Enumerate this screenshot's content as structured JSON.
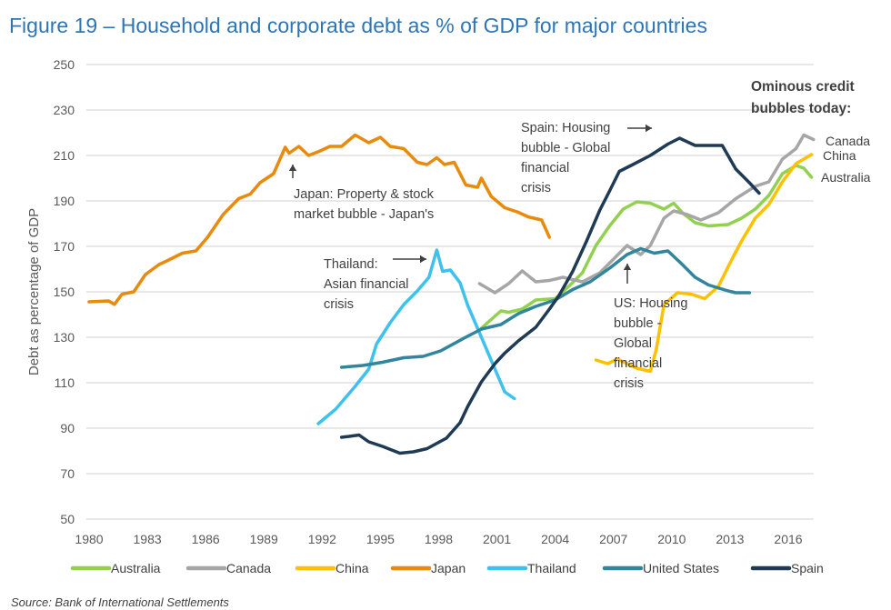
{
  "chart_data": {
    "type": "line",
    "title": "Figure 19 – Household and corporate debt as % of GDP for major countries",
    "xlabel": "",
    "ylabel": "Debt as percentage of GDP",
    "xlim": [
      1980,
      2017.3
    ],
    "ylim": [
      50,
      250
    ],
    "yticks": [
      50,
      70,
      90,
      110,
      130,
      150,
      170,
      190,
      210,
      230,
      250
    ],
    "xticks": [
      1980,
      1983,
      1986,
      1989,
      1992,
      1995,
      1998,
      2001,
      2004,
      2007,
      2010,
      2013,
      2016
    ],
    "grid": "horizontal",
    "legend_position": "bottom",
    "series": [
      {
        "name": "Australia",
        "color": "#92d050",
        "points": [
          [
            2000.2,
            134
          ],
          [
            2001.2,
            141.6
          ],
          [
            2001.6,
            141
          ],
          [
            2002.3,
            142.4
          ],
          [
            2003,
            146.4
          ],
          [
            2004,
            147
          ],
          [
            2004.7,
            152.4
          ],
          [
            2005.4,
            158.4
          ],
          [
            2006.1,
            170.4
          ],
          [
            2006.8,
            179
          ],
          [
            2007.5,
            186.4
          ],
          [
            2008.2,
            189.6
          ],
          [
            2008.9,
            189
          ],
          [
            2009.6,
            186.4
          ],
          [
            2010.1,
            189
          ],
          [
            2010.6,
            184.4
          ],
          [
            2011.2,
            180.4
          ],
          [
            2011.9,
            179
          ],
          [
            2012.9,
            179.6
          ],
          [
            2013.6,
            182.4
          ],
          [
            2014.3,
            186.4
          ],
          [
            2015,
            192.4
          ],
          [
            2015.7,
            202
          ],
          [
            2016.4,
            205.6
          ],
          [
            2016.8,
            204.4
          ],
          [
            2017.2,
            200.4
          ]
        ]
      },
      {
        "name": "Canada",
        "color": "#a6a6a6",
        "points": [
          [
            2000.1,
            153.6
          ],
          [
            2000.9,
            149.6
          ],
          [
            2001.6,
            153.6
          ],
          [
            2002.3,
            159.2
          ],
          [
            2003,
            154.4
          ],
          [
            2003.7,
            155
          ],
          [
            2004.4,
            156.4
          ],
          [
            2005.4,
            154.4
          ],
          [
            2006.3,
            158.4
          ],
          [
            2007,
            164.4
          ],
          [
            2007.7,
            170.4
          ],
          [
            2008.4,
            166.4
          ],
          [
            2008.9,
            170.4
          ],
          [
            2009.6,
            182.4
          ],
          [
            2010.1,
            185.6
          ],
          [
            2010.8,
            184
          ],
          [
            2011.5,
            181.6
          ],
          [
            2012.4,
            184.8
          ],
          [
            2013.3,
            191
          ],
          [
            2014.3,
            196.4
          ],
          [
            2015,
            198.4
          ],
          [
            2015.7,
            208.4
          ],
          [
            2016.4,
            213
          ],
          [
            2016.8,
            219
          ],
          [
            2017.3,
            217
          ]
        ]
      },
      {
        "name": "China",
        "color": "#ffc000",
        "points": [
          [
            2006.1,
            120
          ],
          [
            2006.7,
            118.4
          ],
          [
            2007.2,
            120.4
          ],
          [
            2008.2,
            116.4
          ],
          [
            2008.9,
            115
          ],
          [
            2009.2,
            124.4
          ],
          [
            2009.6,
            144.4
          ],
          [
            2010.3,
            149.6
          ],
          [
            2011,
            149
          ],
          [
            2011.7,
            147
          ],
          [
            2012.4,
            152.4
          ],
          [
            2013.1,
            164.4
          ],
          [
            2013.6,
            172.4
          ],
          [
            2014.3,
            182.4
          ],
          [
            2015,
            188.4
          ],
          [
            2015.7,
            198.4
          ],
          [
            2016.4,
            206.4
          ],
          [
            2017.2,
            210.4
          ]
        ]
      },
      {
        "name": "Japan",
        "color": "#e88a0c",
        "points": [
          [
            1980,
            145.6
          ],
          [
            1981,
            146
          ],
          [
            1981.3,
            144.5
          ],
          [
            1981.7,
            149
          ],
          [
            1982.3,
            150
          ],
          [
            1982.9,
            157.6
          ],
          [
            1983.6,
            162
          ],
          [
            1984.1,
            164
          ],
          [
            1984.8,
            167
          ],
          [
            1985.5,
            168
          ],
          [
            1986.1,
            174
          ],
          [
            1986.9,
            184
          ],
          [
            1987.7,
            191
          ],
          [
            1988.3,
            193
          ],
          [
            1988.8,
            198
          ],
          [
            1989.5,
            202
          ],
          [
            1990.1,
            213.6
          ],
          [
            1990.3,
            211
          ],
          [
            1990.8,
            214
          ],
          [
            1991.3,
            210
          ],
          [
            1991.9,
            212
          ],
          [
            1992.4,
            214
          ],
          [
            1993,
            214
          ],
          [
            1993.7,
            219
          ],
          [
            1994.4,
            215.6
          ],
          [
            1995,
            218
          ],
          [
            1995.5,
            214
          ],
          [
            1996.2,
            213
          ],
          [
            1996.9,
            207
          ],
          [
            1997.4,
            206
          ],
          [
            1997.9,
            209
          ],
          [
            1998.3,
            206
          ],
          [
            1998.8,
            207
          ],
          [
            1999.4,
            197
          ],
          [
            2000,
            196
          ],
          [
            2000.2,
            200
          ],
          [
            2000.7,
            192
          ],
          [
            2001.4,
            187
          ],
          [
            2002.1,
            185
          ],
          [
            2002.6,
            183
          ],
          [
            2003.3,
            181.6
          ],
          [
            2003.7,
            174
          ]
        ]
      },
      {
        "name": "Thailand",
        "color": "#3ec1ef",
        "points": [
          [
            1991.8,
            92
          ],
          [
            1992.7,
            98.4
          ],
          [
            1993.7,
            108.4
          ],
          [
            1994.4,
            116
          ],
          [
            1994.8,
            127
          ],
          [
            1995.5,
            136.4
          ],
          [
            1996.2,
            144.4
          ],
          [
            1996.9,
            150.4
          ],
          [
            1997.5,
            156.4
          ],
          [
            1997.9,
            168.4
          ],
          [
            1998.2,
            159
          ],
          [
            1998.6,
            159.6
          ],
          [
            1999.1,
            154
          ],
          [
            1999.5,
            144
          ],
          [
            2000,
            134
          ],
          [
            2000.5,
            124
          ],
          [
            2000.9,
            116
          ],
          [
            2001.4,
            106
          ],
          [
            2001.9,
            103
          ]
        ]
      },
      {
        "name": "United States",
        "color": "#31859c",
        "points": [
          [
            1993,
            116.8
          ],
          [
            1994.1,
            117.6
          ],
          [
            1995.1,
            119
          ],
          [
            1996.2,
            121
          ],
          [
            1997.2,
            121.6
          ],
          [
            1998.1,
            124
          ],
          [
            1999.3,
            129.6
          ],
          [
            2000.2,
            133.6
          ],
          [
            2001.2,
            135.6
          ],
          [
            2002.1,
            140.4
          ],
          [
            2003,
            143.6
          ],
          [
            2004,
            146.4
          ],
          [
            2004.9,
            151
          ],
          [
            2005.8,
            154.4
          ],
          [
            2006.8,
            160.4
          ],
          [
            2007.7,
            166.4
          ],
          [
            2008.4,
            169
          ],
          [
            2009.1,
            167
          ],
          [
            2009.8,
            168
          ],
          [
            2010.5,
            162.4
          ],
          [
            2011.2,
            156.4
          ],
          [
            2011.9,
            153
          ],
          [
            2012.9,
            150.4
          ],
          [
            2013.3,
            149.6
          ],
          [
            2014,
            149.6
          ]
        ]
      },
      {
        "name": "Spain",
        "color": "#1f3a54",
        "points": [
          [
            1993,
            86
          ],
          [
            1993.4,
            86.4
          ],
          [
            1993.9,
            87
          ],
          [
            1994.4,
            84
          ],
          [
            1995.1,
            82
          ],
          [
            1996,
            79
          ],
          [
            1996.7,
            79.6
          ],
          [
            1997.4,
            81
          ],
          [
            1998.4,
            85.6
          ],
          [
            1999.1,
            92.4
          ],
          [
            1999.5,
            99.6
          ],
          [
            2000.2,
            110.4
          ],
          [
            2000.9,
            118.4
          ],
          [
            2001.4,
            123
          ],
          [
            2002.1,
            128.4
          ],
          [
            2003,
            134.4
          ],
          [
            2003.7,
            142.4
          ],
          [
            2004.2,
            148.4
          ],
          [
            2004.9,
            159
          ],
          [
            2005.6,
            172
          ],
          [
            2006.3,
            186
          ],
          [
            2006.8,
            194.4
          ],
          [
            2007.3,
            203
          ],
          [
            2008,
            206
          ],
          [
            2008.9,
            210
          ],
          [
            2009.8,
            215
          ],
          [
            2010.4,
            217.6
          ],
          [
            2011.2,
            214.4
          ],
          [
            2011.9,
            214.4
          ],
          [
            2012.6,
            214.4
          ],
          [
            2013.3,
            204
          ],
          [
            2014,
            198
          ],
          [
            2014.5,
            193.4
          ]
        ]
      }
    ],
    "annotations": {
      "japan": [
        "Japan: Property & stock",
        "market bubble - Japan's"
      ],
      "thailand": [
        "Thailand:",
        "Asian financial",
        "crisis"
      ],
      "spain": [
        "Spain: Housing",
        "bubble - Global",
        "financial",
        "crisis"
      ],
      "us": [
        "US: Housing",
        "bubble -",
        "Global",
        "financial",
        "crisis"
      ],
      "ominous": [
        "Ominous credit",
        "bubbles today:"
      ],
      "end_labels": [
        "Canada",
        "China",
        "Australia"
      ]
    },
    "source": "Source: Bank of International Settlements"
  }
}
